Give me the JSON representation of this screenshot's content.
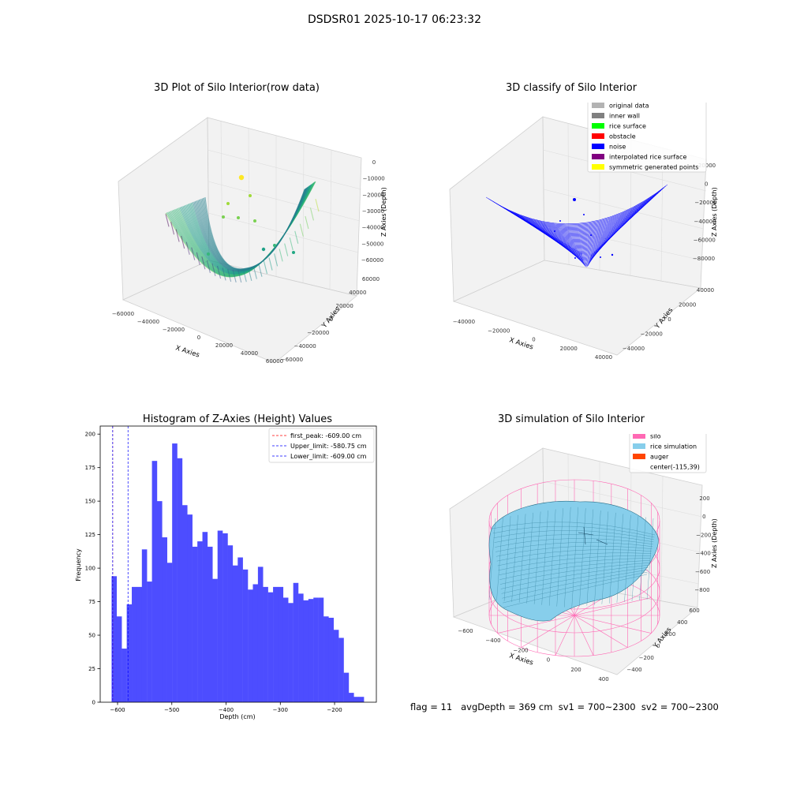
{
  "figure": {
    "suptitle": "DSDSR01 2025-10-17 06:23:32",
    "status_line": "flag = 11   avgDepth = 369 cm  sv1 = 700~2300  sv2 = 700~2300"
  },
  "panel_raw": {
    "title": "3D Plot of Silo Interior(row data)",
    "xlabel": "X Axies",
    "ylabel": "Y Axies",
    "zlabel": "Z Axies (Depth)",
    "x_ticks": [
      "−60000",
      "−40000",
      "−20000",
      "0",
      "20000",
      "40000",
      "60000"
    ],
    "y_ticks": [
      "−60000",
      "−40000",
      "−20000",
      "0",
      "20000",
      "40000",
      "60000"
    ],
    "z_ticks": [
      "0",
      "−10000",
      "−20000",
      "−30000",
      "−40000",
      "−50000",
      "−60000"
    ],
    "colormap": "viridis"
  },
  "panel_classify": {
    "title": "3D classify of Silo Interior",
    "xlabel": "X Axies",
    "ylabel": "Y Axies",
    "zlabel": "Z Axies (Depth)",
    "x_ticks": [
      "−40000",
      "−20000",
      "0",
      "20000",
      "40000"
    ],
    "y_ticks": [
      "−40000",
      "−20000",
      "0",
      "20000",
      "40000"
    ],
    "z_ticks": [
      "20000",
      "0",
      "−20000",
      "−40000",
      "−60000",
      "−80000"
    ],
    "legend": [
      {
        "label": "original data",
        "color": "#b3b3b3"
      },
      {
        "label": "inner wall",
        "color": "#808080"
      },
      {
        "label": "rice surface",
        "color": "#00ff00"
      },
      {
        "label": "obstacle",
        "color": "#ff0000"
      },
      {
        "label": "noise",
        "color": "#0000ff"
      },
      {
        "label": "interpolated rice surface",
        "color": "#800080"
      },
      {
        "label": "symmetric generated points",
        "color": "#ffff00"
      }
    ]
  },
  "panel_sim": {
    "title": "3D simulation of Silo Interior",
    "xlabel": "X Axies",
    "ylabel": "Y Axies",
    "zlabel": "Z Axies (Depth)",
    "x_ticks": [
      "−600",
      "−400",
      "−200",
      "0",
      "200",
      "400"
    ],
    "y_ticks": [
      "−400",
      "−200",
      "0",
      "200",
      "400",
      "600"
    ],
    "z_ticks": [
      "200",
      "0",
      "−200",
      "−400",
      "−600",
      "−800"
    ],
    "legend": [
      {
        "label": "silo",
        "color": "#ff69b4"
      },
      {
        "label": "rice simulation",
        "color": "#87ceeb"
      },
      {
        "label": "auger",
        "color": "#ff4500"
      },
      {
        "label": "center(-115,39)",
        "color": ""
      }
    ]
  },
  "chart_data": {
    "type": "bar",
    "title": "Histogram of Z-Axies (Height) Values",
    "xlabel": "Depth (cm)",
    "ylabel": "Frequency",
    "xlim": [
      -632,
      -123
    ],
    "ylim": [
      0,
      206
    ],
    "bin_start": -611,
    "bin_width": 9.3,
    "values": [
      94,
      64,
      40,
      73,
      86,
      86,
      114,
      90,
      180,
      150,
      123,
      104,
      193,
      182,
      147,
      140,
      116,
      120,
      127,
      116,
      92,
      128,
      126,
      117,
      102,
      108,
      99,
      84,
      88,
      101,
      86,
      82,
      86,
      86,
      78,
      74,
      89,
      81,
      76,
      77,
      78,
      78,
      64,
      63,
      54,
      48,
      22,
      7,
      4,
      4
    ],
    "color": "#4d4dff",
    "x_ticks": [
      -600,
      -500,
      -400,
      -300,
      -200
    ],
    "x_tick_labels": [
      "−600",
      "−500",
      "−400",
      "−300",
      "−200"
    ],
    "y_ticks": [
      0,
      25,
      50,
      75,
      100,
      125,
      150,
      175,
      200
    ],
    "lines": [
      {
        "label": "first_peak: -609.00 cm",
        "x": -609.0,
        "color": "#ff0000"
      },
      {
        "label": "Upper_limit: -580.75 cm",
        "x": -580.75,
        "color": "#0000ff"
      },
      {
        "label": "Lower_limit: -609.00 cm",
        "x": -609.0,
        "color": "#0000ff"
      }
    ]
  }
}
